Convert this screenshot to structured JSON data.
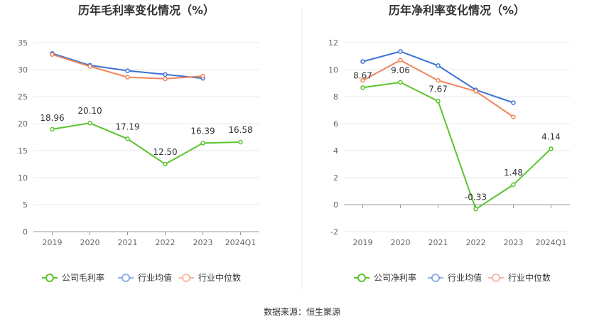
{
  "colors": {
    "company": "#5ac42d",
    "industry_avg": "#3b73d6",
    "industry_median": "#f0845c",
    "grid": "#e8e8e8",
    "axis": "#999999",
    "divider": "#eeeeee"
  },
  "source_label": "数据来源：恒生聚源",
  "chart_data": [
    {
      "type": "line",
      "title": "历年毛利率变化情况（%）",
      "categories": [
        "2019",
        "2020",
        "2021",
        "2022",
        "2023",
        "2024Q1"
      ],
      "yticks": [
        0,
        5,
        10,
        15,
        20,
        25,
        30,
        35
      ],
      "ylim": [
        0,
        35
      ],
      "grid": true,
      "legend_position": "bottom",
      "series": [
        {
          "key": "company",
          "name": "公司毛利率",
          "values": [
            18.96,
            20.1,
            17.19,
            12.5,
            16.39,
            16.58
          ],
          "labels": [
            "18.96",
            "20.10",
            "17.19",
            "12.50",
            "16.39",
            "16.58"
          ]
        },
        {
          "key": "industry_avg",
          "name": "行业均值",
          "values": [
            33.0,
            30.8,
            29.8,
            29.1,
            28.4,
            null
          ]
        },
        {
          "key": "industry_median",
          "name": "行业中位数",
          "values": [
            32.8,
            30.6,
            28.6,
            28.3,
            28.8,
            null
          ]
        }
      ]
    },
    {
      "type": "line",
      "title": "历年净利率变化情况（%）",
      "categories": [
        "2019",
        "2020",
        "2021",
        "2022",
        "2023",
        "2024Q1"
      ],
      "yticks": [
        -2,
        0,
        2,
        4,
        6,
        8,
        10,
        12
      ],
      "ylim": [
        -2,
        12
      ],
      "grid": true,
      "legend_position": "bottom",
      "series": [
        {
          "key": "company",
          "name": "公司净利率",
          "values": [
            8.67,
            9.06,
            7.67,
            -0.33,
            1.48,
            4.14
          ],
          "labels": [
            "8.67",
            "9.06",
            "7.67",
            "-0.33",
            "1.48",
            "4.14"
          ]
        },
        {
          "key": "industry_avg",
          "name": "行业均值",
          "values": [
            10.6,
            11.35,
            10.3,
            8.5,
            7.55,
            null
          ]
        },
        {
          "key": "industry_median",
          "name": "行业中位数",
          "values": [
            9.2,
            10.7,
            9.2,
            8.4,
            6.5,
            null
          ]
        }
      ]
    }
  ]
}
